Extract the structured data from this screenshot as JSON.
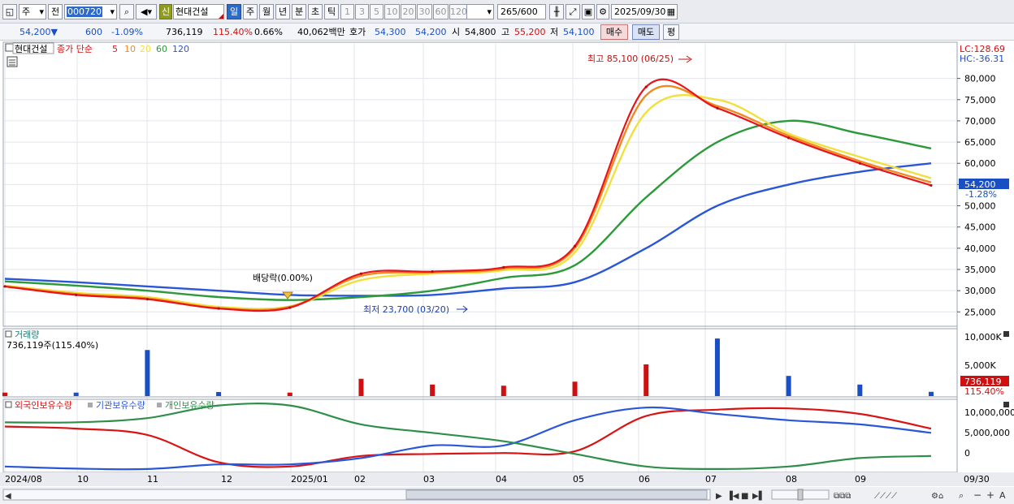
{
  "toolbar": {
    "type_select": "주",
    "prev_select": "전",
    "code": "000720",
    "credit_badge": "신",
    "stock_name": "현대건설",
    "periods": [
      "일",
      "주",
      "월",
      "년",
      "분",
      "초",
      "틱"
    ],
    "selected_period": "일",
    "intervals": [
      "1",
      "3",
      "5",
      "10",
      "20",
      "30",
      "60",
      "120"
    ],
    "count": "265",
    "count_total": "/600",
    "date": "2025/09/30"
  },
  "quote": {
    "price": "54,200",
    "change": "600",
    "change_pct": "-1.09%",
    "volume": "736,119",
    "volume_ratio": "115.40%",
    "turnover": "0.66%",
    "amount": "40,062백만",
    "bid_label": "호가",
    "ask": "54,300",
    "bid": "54,200",
    "open_label": "시",
    "open": "54,800",
    "high_label": "고",
    "high": "55,200",
    "low_label": "저",
    "low": "54,100",
    "buy_btn": "매수",
    "sell_btn": "매도",
    "eval_btn": "평"
  },
  "price_panel": {
    "name_tag": "현대건설",
    "ma_title": "종가 단순",
    "ma_periods": [
      {
        "label": "5",
        "color": "#e8141a"
      },
      {
        "label": "10",
        "color": "#f08a20"
      },
      {
        "label": "20",
        "color": "#f0e040"
      },
      {
        "label": "60",
        "color": "#2c9a3a"
      },
      {
        "label": "120",
        "color": "#2a56d8"
      }
    ],
    "lc": "LC:128.69",
    "hc": "HC:-36.31",
    "y_ticks": [
      "80,000",
      "75,000",
      "70,000",
      "65,000",
      "60,000",
      "55,000",
      "50,000",
      "45,000",
      "40,000",
      "35,000",
      "30,000",
      "25,000"
    ],
    "current_label": "54,200",
    "current_pct": "-1.28%",
    "high_note": "최고 85,100 (06/25)",
    "low_note": "최저 23,700 (03/20)",
    "dividend_note": "배당락(0.00%)"
  },
  "volume_panel": {
    "title": "거래량",
    "value": "736,119주(115.40%)",
    "y_ticks": [
      "10,000K",
      "5,000K"
    ],
    "current_label": "736,119",
    "current_pct": "115.40%"
  },
  "holding_panel": {
    "series": [
      {
        "name": "외국인보유수량",
        "color": "#d81414"
      },
      {
        "name": "기관보유수량",
        "color": "#2a56d8"
      },
      {
        "name": "개인보유수량",
        "color": "#2f8f4a"
      }
    ],
    "y_ticks": [
      "10,000,000",
      "5,000,000",
      "0"
    ]
  },
  "x_labels": [
    "2024/08",
    "10",
    "11",
    "12",
    "2025/01",
    "02",
    "03",
    "04",
    "05",
    "06",
    "07",
    "08",
    "09",
    "09/30"
  ],
  "chart_data": [
    {
      "type": "line",
      "title": "현대건설 종가 단순",
      "x": [
        "2024/08",
        "10",
        "11",
        "12",
        "2025/01",
        "02",
        "03",
        "04",
        "05",
        "06",
        "07",
        "08",
        "09",
        "09/30"
      ],
      "ylim": [
        22000,
        87000
      ],
      "series": [
        {
          "name": "5",
          "values": [
            31000,
            29000,
            28000,
            25800,
            26000,
            34000,
            34500,
            35500,
            40500,
            78000,
            73000,
            66000,
            60000,
            54800
          ]
        },
        {
          "name": "10",
          "values": [
            31000,
            29200,
            28200,
            25900,
            26200,
            33500,
            34300,
            35200,
            40000,
            76000,
            73500,
            66500,
            60500,
            55500
          ]
        },
        {
          "name": "20",
          "values": [
            31200,
            29500,
            28500,
            26200,
            26300,
            32500,
            34000,
            34800,
            39000,
            72000,
            75000,
            67000,
            61500,
            56500
          ]
        },
        {
          "name": "60",
          "values": [
            32200,
            31200,
            30000,
            28500,
            27800,
            28500,
            30000,
            33000,
            36000,
            52000,
            65000,
            70000,
            67000,
            63500
          ]
        },
        {
          "name": "120",
          "values": [
            32800,
            32000,
            31000,
            30000,
            29000,
            28800,
            29000,
            30500,
            32000,
            40000,
            50000,
            55000,
            58000,
            60000
          ]
        }
      ],
      "annotations": [
        "최고 85,100 (06/25)",
        "최저 23,700 (03/20)",
        "배당락(0.00%)"
      ]
    },
    {
      "type": "bar",
      "title": "거래량",
      "x": [
        "2024/08",
        "10",
        "11",
        "12",
        "2025/01",
        "02",
        "03",
        "04",
        "05",
        "06",
        "07",
        "08",
        "09",
        "09/30"
      ],
      "values": [
        600,
        600,
        8000,
        700,
        600,
        3000,
        2000,
        1800,
        2500,
        5500,
        10000,
        3500,
        2000,
        736
      ],
      "ylim": [
        0,
        11000
      ]
    },
    {
      "type": "line",
      "x": [
        "2024/08",
        "10",
        "11",
        "12",
        "2025/01",
        "02",
        "03",
        "04",
        "05",
        "06",
        "07",
        "08",
        "09",
        "09/30"
      ],
      "ylim": [
        -4000000,
        12000000
      ],
      "series": [
        {
          "name": "외국인보유수량",
          "values": [
            6500000,
            6000000,
            4500000,
            -2000000,
            -3000000,
            -500000,
            0,
            200000,
            600000,
            9000000,
            10500000,
            10800000,
            9500000,
            6000000
          ]
        },
        {
          "name": "기관보유수량",
          "values": [
            -3000000,
            -3500000,
            -3600000,
            -2500000,
            -2500000,
            -1000000,
            2000000,
            2000000,
            8000000,
            11000000,
            9500000,
            8000000,
            7000000,
            5000000
          ]
        },
        {
          "name": "개인보유수량",
          "values": [
            7500000,
            7500000,
            8500000,
            11500000,
            11500000,
            7000000,
            5000000,
            3000000,
            0,
            -3000000,
            -3600000,
            -3000000,
            -1000000,
            -500000
          ]
        }
      ]
    }
  ]
}
